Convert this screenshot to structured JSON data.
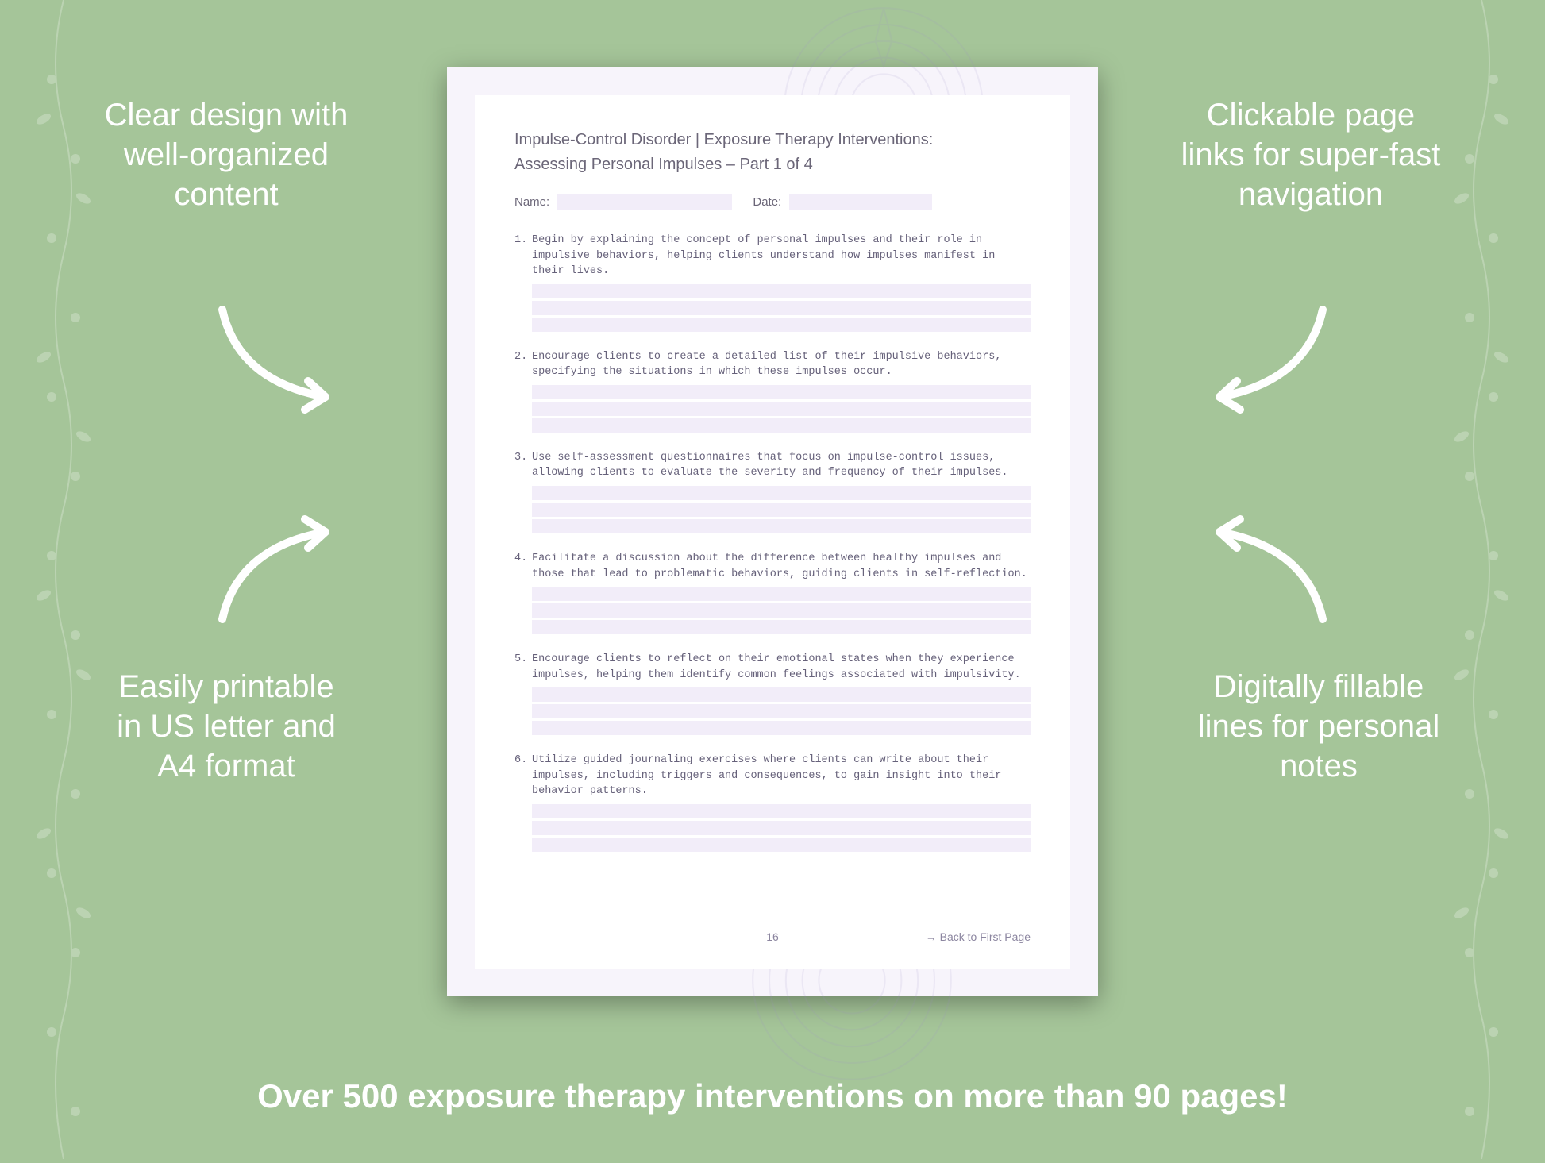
{
  "background_color": "#a5c599",
  "callouts": {
    "top_left": "Clear design with well-organized content",
    "top_right": "Clickable page links for super-fast navigation",
    "bottom_left": "Easily printable in US letter and A4 format",
    "bottom_right": "Digitally fillable lines for personal notes"
  },
  "callout_style": {
    "color": "#ffffff",
    "fontsize": 40,
    "font_weight": 300
  },
  "arrow_color": "#ffffff",
  "banner": {
    "text": "Over 500 exposure therapy interventions on more than 90 pages!",
    "color": "#ffffff",
    "fontsize": 42,
    "font_weight": 600
  },
  "document": {
    "page_bg": "#f7f4fb",
    "inner_bg": "#ffffff",
    "fill_line_color": "#f2edf9",
    "text_color": "#6b6678",
    "mono_text_color": "#66617a",
    "mandala_color": "#9d8dc9",
    "title_line1": "Impulse-Control Disorder | Exposure Therapy Interventions:",
    "title_line2": "Assessing Personal Impulses  – Part 1 of 4",
    "name_label": "Name:",
    "date_label": "Date:",
    "items": [
      "Begin by explaining the concept of personal impulses and their role in impulsive behaviors, helping clients understand how impulses manifest in their lives.",
      "Encourage clients to create a detailed list of their impulsive behaviors, specifying the situations in which these impulses occur.",
      "Use self-assessment questionnaires that focus on impulse-control issues, allowing clients to evaluate the severity and frequency of their impulses.",
      "Facilitate a discussion about the difference between healthy impulses and those that lead to problematic behaviors, guiding clients in self-reflection.",
      "Encourage clients to reflect on their emotional states when they experience impulses, helping them identify common feelings associated with impulsivity.",
      "Utilize guided journaling exercises where clients can write about their impulses, including triggers and consequences, to gain insight into their behavior patterns."
    ],
    "fill_lines_per_item": 3,
    "page_number": "16",
    "back_link": "→ Back to First Page"
  }
}
